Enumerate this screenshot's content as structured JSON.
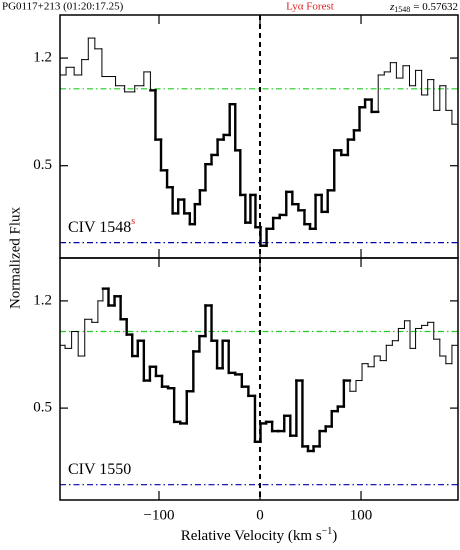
{
  "header": {
    "object": "PG0117+213 (01:20:17.25)",
    "region": "Lyα Forest",
    "z_symbol": "z",
    "z_subscript": "1548",
    "z_text": "= 0.57632"
  },
  "figure": {
    "xlabel": "Relative Velocity (km s",
    "xlabel_exponent": "−1",
    "xlabel_close": ")",
    "ylabel": "Normalized Flux"
  },
  "chart_data": [
    {
      "type": "step",
      "label": "CIV 1548",
      "label_flag": "s",
      "xlim": [
        -198,
        196
      ],
      "ylim": [
        -0.1,
        1.48
      ],
      "xticks": [
        {
          "value": -100,
          "label": "−100"
        },
        0,
        100
      ],
      "yticks": [
        0.5,
        1.2
      ],
      "marker_x": 0,
      "hlines": [
        {
          "value": 1.0,
          "color": "#22cc22"
        },
        {
          "value": 0.0,
          "color": "#0000aa"
        }
      ],
      "highlight": [
        -110,
        117
      ],
      "x": [
        -196,
        -188,
        -180,
        -173,
        -167,
        -160,
        -153,
        -147,
        -139,
        -129,
        -119,
        -111,
        -106,
        -101,
        -95,
        -89,
        -84,
        -78,
        -72,
        -67,
        -62,
        -57,
        -51,
        -45,
        -39,
        -33,
        -27,
        -22,
        -17,
        -12,
        -7,
        -2,
        3,
        10,
        16,
        23,
        29,
        35,
        41,
        47,
        52,
        58,
        64,
        70,
        77,
        84,
        90,
        96,
        101,
        107,
        114,
        120,
        126,
        132,
        138,
        145,
        151,
        157,
        163,
        169,
        175,
        181,
        187,
        193
      ],
      "values": [
        1.09,
        1.14,
        1.09,
        1.19,
        1.33,
        1.26,
        1.08,
        1.08,
        1.02,
        0.98,
        1.02,
        1.11,
        0.99,
        0.67,
        0.47,
        0.36,
        0.19,
        0.28,
        0.19,
        0.12,
        0.25,
        0.34,
        0.51,
        0.57,
        0.67,
        0.7,
        0.9,
        0.6,
        0.31,
        0.13,
        0.31,
        0.1,
        -0.02,
        0.09,
        0.16,
        0.18,
        0.33,
        0.25,
        0.21,
        0.12,
        0.09,
        0.31,
        0.2,
        0.34,
        0.6,
        0.57,
        0.67,
        0.73,
        0.88,
        0.93,
        0.85,
        1.09,
        1.11,
        1.17,
        1.07,
        1.15,
        1.02,
        1.12,
        0.96,
        1.06,
        0.86,
        1.02,
        0.86,
        0.77
      ]
    },
    {
      "type": "step",
      "label": "CIV 1550",
      "xlim": [
        -198,
        196
      ],
      "ylim": [
        -0.1,
        1.48
      ],
      "xticks": [
        {
          "value": -100,
          "label": "−100"
        },
        0,
        100
      ],
      "yticks": [
        0.5,
        1.2
      ],
      "marker_x": 0,
      "hlines": [
        {
          "value": 1.0,
          "color": "#22cc22"
        },
        {
          "value": 0.0,
          "color": "#0000aa"
        }
      ],
      "highlight": [
        -155,
        88
      ],
      "x": [
        -196,
        -190,
        -183,
        -177,
        -170,
        -163,
        -158,
        -153,
        -147,
        -141,
        -135,
        -129,
        -124,
        -118,
        -112,
        -106,
        -100,
        -94,
        -88,
        -82,
        -76,
        -69,
        -63,
        -57,
        -51,
        -45,
        -40,
        -34,
        -28,
        -21,
        -15,
        -8,
        -2,
        3,
        9,
        15,
        21,
        27,
        33,
        39,
        45,
        50,
        56,
        62,
        68,
        74,
        80,
        86,
        92,
        98,
        104,
        110,
        116,
        122,
        128,
        134,
        140,
        146,
        151,
        157,
        163,
        169,
        175,
        181,
        187,
        193
      ],
      "values": [
        0.91,
        0.89,
        1.0,
        0.84,
        1.08,
        1.06,
        1.2,
        1.28,
        1.17,
        1.23,
        1.08,
        0.98,
        0.84,
        0.94,
        0.68,
        0.77,
        0.71,
        0.64,
        0.63,
        0.41,
        0.4,
        0.61,
        0.87,
        0.97,
        1.17,
        0.94,
        0.76,
        0.94,
        0.73,
        0.72,
        0.64,
        0.58,
        0.28,
        0.4,
        0.41,
        0.35,
        0.35,
        0.45,
        0.32,
        0.68,
        0.25,
        0.22,
        0.25,
        0.35,
        0.38,
        0.48,
        0.51,
        0.68,
        0.61,
        0.68,
        0.79,
        0.77,
        0.84,
        0.81,
        0.91,
        0.94,
        1.02,
        1.07,
        0.89,
        1.02,
        1.04,
        1.06,
        0.95,
        0.84,
        0.79,
        0.91
      ]
    }
  ]
}
